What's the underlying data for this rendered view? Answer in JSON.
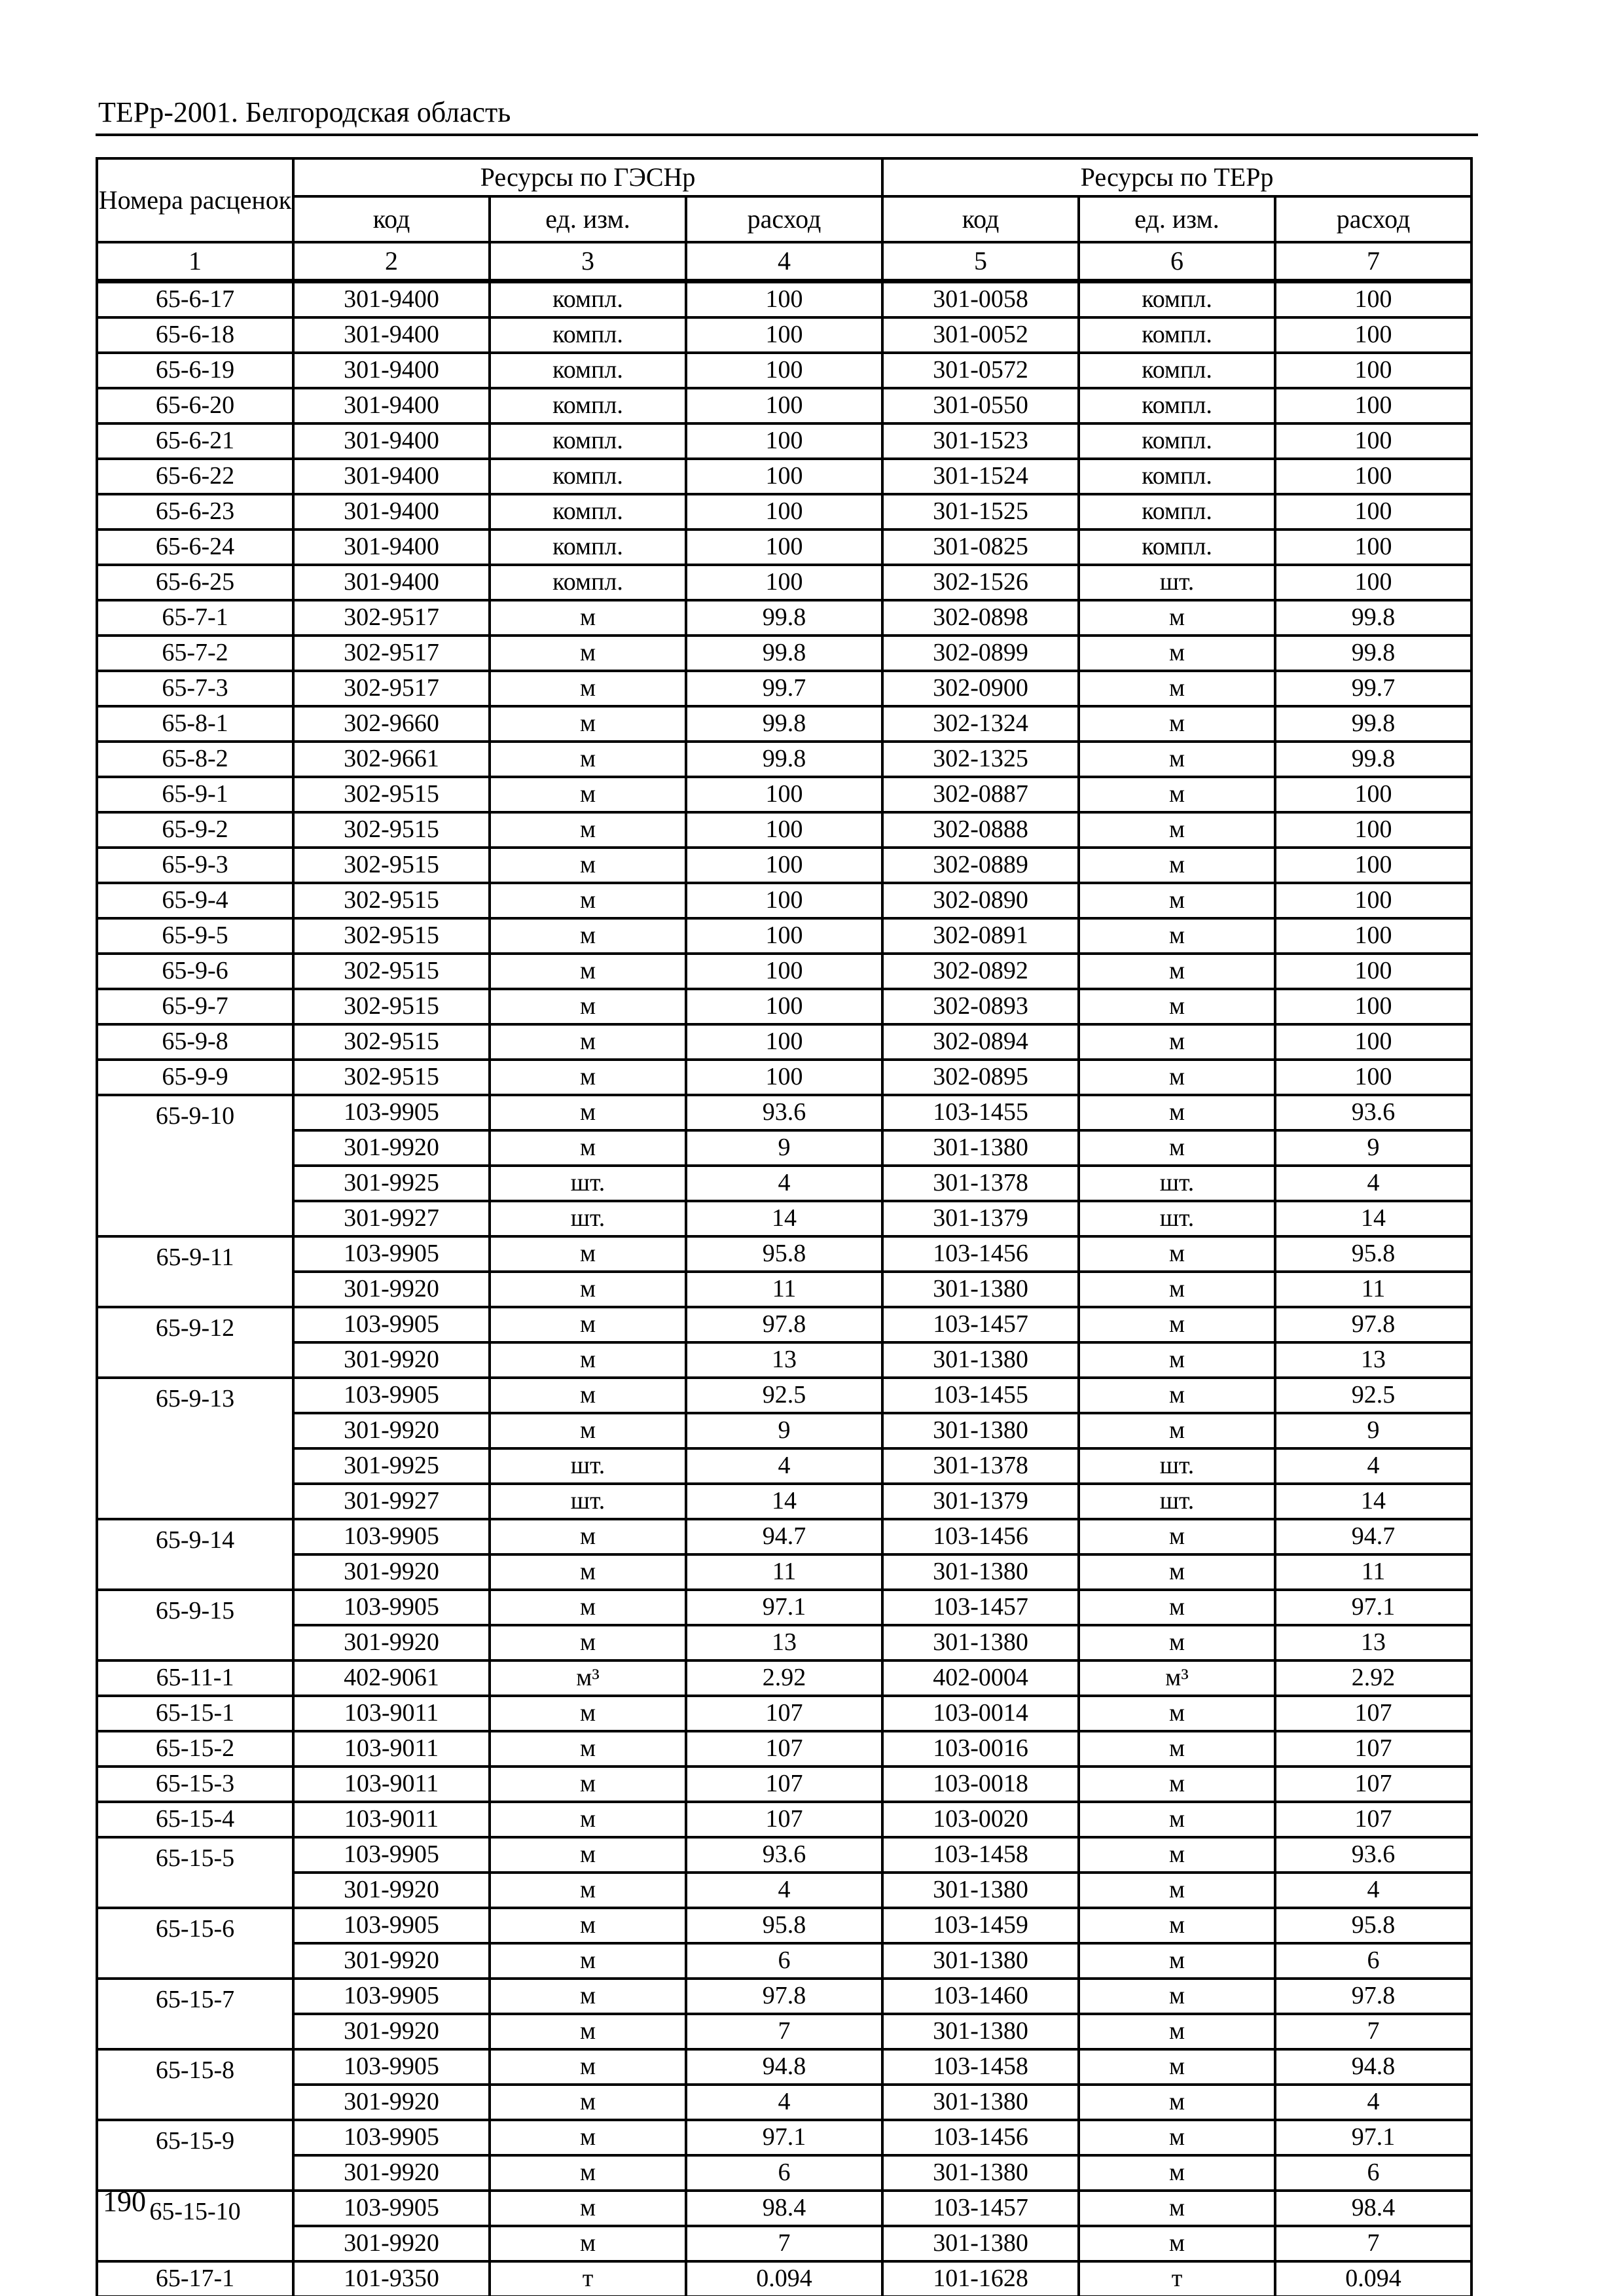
{
  "page": {
    "title": "ТЕРр-2001. Белгородская область",
    "page_number": "190"
  },
  "table": {
    "header": {
      "col1": "Номера расценок",
      "group_gesn": "Ресурсы по ГЭСНр",
      "group_ter": "Ресурсы по ТЕРр",
      "sub": [
        "код",
        "ед. изм.",
        "расход",
        "код",
        "ед. изм.",
        "расход"
      ],
      "numbers": [
        "1",
        "2",
        "3",
        "4",
        "5",
        "6",
        "7"
      ]
    },
    "groups": [
      {
        "num": "65-6-17",
        "rows": [
          [
            "301-9400",
            "компл.",
            "100",
            "301-0058",
            "компл.",
            "100"
          ]
        ]
      },
      {
        "num": "65-6-18",
        "rows": [
          [
            "301-9400",
            "компл.",
            "100",
            "301-0052",
            "компл.",
            "100"
          ]
        ]
      },
      {
        "num": "65-6-19",
        "rows": [
          [
            "301-9400",
            "компл.",
            "100",
            "301-0572",
            "компл.",
            "100"
          ]
        ]
      },
      {
        "num": "65-6-20",
        "rows": [
          [
            "301-9400",
            "компл.",
            "100",
            "301-0550",
            "компл.",
            "100"
          ]
        ]
      },
      {
        "num": "65-6-21",
        "rows": [
          [
            "301-9400",
            "компл.",
            "100",
            "301-1523",
            "компл.",
            "100"
          ]
        ]
      },
      {
        "num": "65-6-22",
        "rows": [
          [
            "301-9400",
            "компл.",
            "100",
            "301-1524",
            "компл.",
            "100"
          ]
        ]
      },
      {
        "num": "65-6-23",
        "rows": [
          [
            "301-9400",
            "компл.",
            "100",
            "301-1525",
            "компл.",
            "100"
          ]
        ]
      },
      {
        "num": "65-6-24",
        "rows": [
          [
            "301-9400",
            "компл.",
            "100",
            "301-0825",
            "компл.",
            "100"
          ]
        ]
      },
      {
        "num": "65-6-25",
        "rows": [
          [
            "301-9400",
            "компл.",
            "100",
            "302-1526",
            "шт.",
            "100"
          ]
        ]
      },
      {
        "num": "65-7-1",
        "rows": [
          [
            "302-9517",
            "м",
            "99.8",
            "302-0898",
            "м",
            "99.8"
          ]
        ]
      },
      {
        "num": "65-7-2",
        "rows": [
          [
            "302-9517",
            "м",
            "99.8",
            "302-0899",
            "м",
            "99.8"
          ]
        ]
      },
      {
        "num": "65-7-3",
        "rows": [
          [
            "302-9517",
            "м",
            "99.7",
            "302-0900",
            "м",
            "99.7"
          ]
        ]
      },
      {
        "num": "65-8-1",
        "rows": [
          [
            "302-9660",
            "м",
            "99.8",
            "302-1324",
            "м",
            "99.8"
          ]
        ]
      },
      {
        "num": "65-8-2",
        "rows": [
          [
            "302-9661",
            "м",
            "99.8",
            "302-1325",
            "м",
            "99.8"
          ]
        ]
      },
      {
        "num": "65-9-1",
        "rows": [
          [
            "302-9515",
            "м",
            "100",
            "302-0887",
            "м",
            "100"
          ]
        ]
      },
      {
        "num": "65-9-2",
        "rows": [
          [
            "302-9515",
            "м",
            "100",
            "302-0888",
            "м",
            "100"
          ]
        ]
      },
      {
        "num": "65-9-3",
        "rows": [
          [
            "302-9515",
            "м",
            "100",
            "302-0889",
            "м",
            "100"
          ]
        ]
      },
      {
        "num": "65-9-4",
        "rows": [
          [
            "302-9515",
            "м",
            "100",
            "302-0890",
            "м",
            "100"
          ]
        ]
      },
      {
        "num": "65-9-5",
        "rows": [
          [
            "302-9515",
            "м",
            "100",
            "302-0891",
            "м",
            "100"
          ]
        ]
      },
      {
        "num": "65-9-6",
        "rows": [
          [
            "302-9515",
            "м",
            "100",
            "302-0892",
            "м",
            "100"
          ]
        ]
      },
      {
        "num": "65-9-7",
        "rows": [
          [
            "302-9515",
            "м",
            "100",
            "302-0893",
            "м",
            "100"
          ]
        ]
      },
      {
        "num": "65-9-8",
        "rows": [
          [
            "302-9515",
            "м",
            "100",
            "302-0894",
            "м",
            "100"
          ]
        ]
      },
      {
        "num": "65-9-9",
        "rows": [
          [
            "302-9515",
            "м",
            "100",
            "302-0895",
            "м",
            "100"
          ]
        ]
      },
      {
        "num": "65-9-10",
        "rows": [
          [
            "103-9905",
            "м",
            "93.6",
            "103-1455",
            "м",
            "93.6"
          ],
          [
            "301-9920",
            "м",
            "9",
            "301-1380",
            "м",
            "9"
          ],
          [
            "301-9925",
            "шт.",
            "4",
            "301-1378",
            "шт.",
            "4"
          ],
          [
            "301-9927",
            "шт.",
            "14",
            "301-1379",
            "шт.",
            "14"
          ]
        ]
      },
      {
        "num": "65-9-11",
        "rows": [
          [
            "103-9905",
            "м",
            "95.8",
            "103-1456",
            "м",
            "95.8"
          ],
          [
            "301-9920",
            "м",
            "11",
            "301-1380",
            "м",
            "11"
          ]
        ]
      },
      {
        "num": "65-9-12",
        "rows": [
          [
            "103-9905",
            "м",
            "97.8",
            "103-1457",
            "м",
            "97.8"
          ],
          [
            "301-9920",
            "м",
            "13",
            "301-1380",
            "м",
            "13"
          ]
        ]
      },
      {
        "num": "65-9-13",
        "rows": [
          [
            "103-9905",
            "м",
            "92.5",
            "103-1455",
            "м",
            "92.5"
          ],
          [
            "301-9920",
            "м",
            "9",
            "301-1380",
            "м",
            "9"
          ],
          [
            "301-9925",
            "шт.",
            "4",
            "301-1378",
            "шт.",
            "4"
          ],
          [
            "301-9927",
            "шт.",
            "14",
            "301-1379",
            "шт.",
            "14"
          ]
        ]
      },
      {
        "num": "65-9-14",
        "rows": [
          [
            "103-9905",
            "м",
            "94.7",
            "103-1456",
            "м",
            "94.7"
          ],
          [
            "301-9920",
            "м",
            "11",
            "301-1380",
            "м",
            "11"
          ]
        ]
      },
      {
        "num": "65-9-15",
        "rows": [
          [
            "103-9905",
            "м",
            "97.1",
            "103-1457",
            "м",
            "97.1"
          ],
          [
            "301-9920",
            "м",
            "13",
            "301-1380",
            "м",
            "13"
          ]
        ]
      },
      {
        "num": "65-11-1",
        "rows": [
          [
            "402-9061",
            "м³",
            "2.92",
            "402-0004",
            "м³",
            "2.92"
          ]
        ]
      },
      {
        "num": "65-15-1",
        "rows": [
          [
            "103-9011",
            "м",
            "107",
            "103-0014",
            "м",
            "107"
          ]
        ]
      },
      {
        "num": "65-15-2",
        "rows": [
          [
            "103-9011",
            "м",
            "107",
            "103-0016",
            "м",
            "107"
          ]
        ]
      },
      {
        "num": "65-15-3",
        "rows": [
          [
            "103-9011",
            "м",
            "107",
            "103-0018",
            "м",
            "107"
          ]
        ]
      },
      {
        "num": "65-15-4",
        "rows": [
          [
            "103-9011",
            "м",
            "107",
            "103-0020",
            "м",
            "107"
          ]
        ]
      },
      {
        "num": "65-15-5",
        "rows": [
          [
            "103-9905",
            "м",
            "93.6",
            "103-1458",
            "м",
            "93.6"
          ],
          [
            "301-9920",
            "м",
            "4",
            "301-1380",
            "м",
            "4"
          ]
        ]
      },
      {
        "num": "65-15-6",
        "rows": [
          [
            "103-9905",
            "м",
            "95.8",
            "103-1459",
            "м",
            "95.8"
          ],
          [
            "301-9920",
            "м",
            "6",
            "301-1380",
            "м",
            "6"
          ]
        ]
      },
      {
        "num": "65-15-7",
        "rows": [
          [
            "103-9905",
            "м",
            "97.8",
            "103-1460",
            "м",
            "97.8"
          ],
          [
            "301-9920",
            "м",
            "7",
            "301-1380",
            "м",
            "7"
          ]
        ]
      },
      {
        "num": "65-15-8",
        "rows": [
          [
            "103-9905",
            "м",
            "94.8",
            "103-1458",
            "м",
            "94.8"
          ],
          [
            "301-9920",
            "м",
            "4",
            "301-1380",
            "м",
            "4"
          ]
        ]
      },
      {
        "num": "65-15-9",
        "rows": [
          [
            "103-9905",
            "м",
            "97.1",
            "103-1456",
            "м",
            "97.1"
          ],
          [
            "301-9920",
            "м",
            "6",
            "301-1380",
            "м",
            "6"
          ]
        ]
      },
      {
        "num": "65-15-10",
        "rows": [
          [
            "103-9905",
            "м",
            "98.4",
            "103-1457",
            "м",
            "98.4"
          ],
          [
            "301-9920",
            "м",
            "7",
            "301-1380",
            "м",
            "7"
          ]
        ]
      },
      {
        "num": "65-17-1",
        "rows": [
          [
            "101-9350",
            "т",
            "0.094",
            "101-1628",
            "т",
            "0.094"
          ]
        ]
      }
    ]
  }
}
